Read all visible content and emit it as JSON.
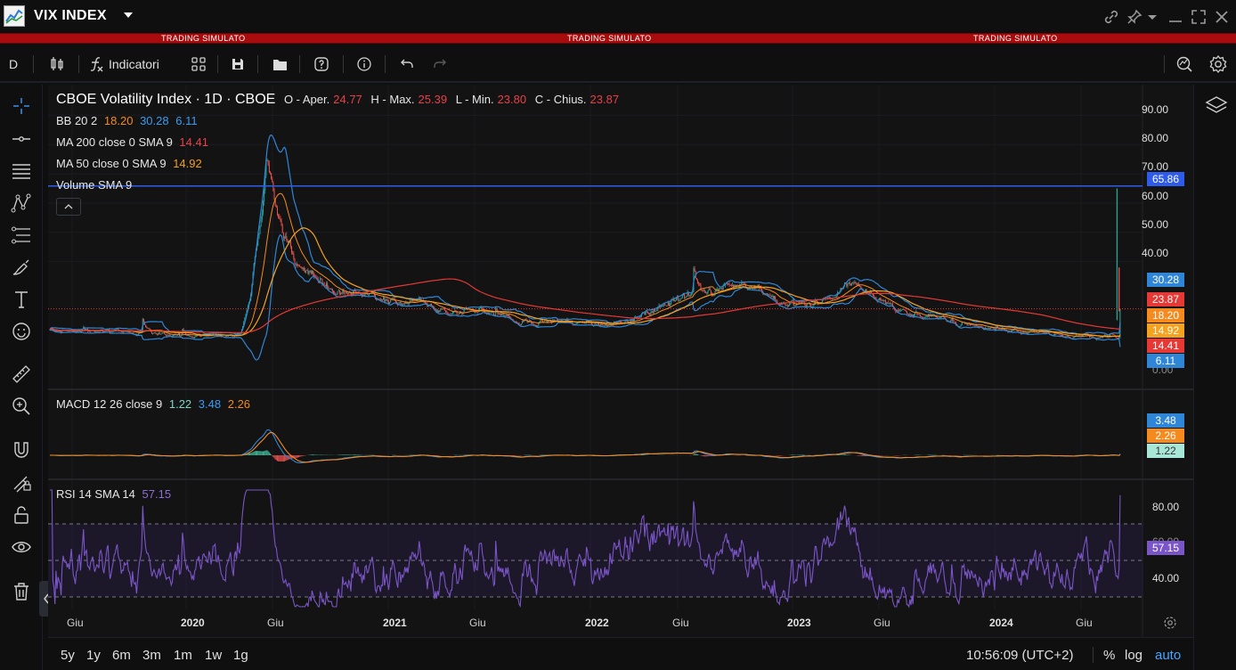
{
  "window": {
    "title": "VIX INDEX"
  },
  "banner": {
    "text_1": "TRADING SIMULATO",
    "text_2": "TRADING SIMULATO",
    "text_3": "TRADING SIMULATO"
  },
  "toolbar": {
    "interval": "D",
    "indicators_label": "Indicatori"
  },
  "legend": {
    "title": "CBOE Volatility Index · 1D · CBOE",
    "ohlc": {
      "o_label": "O - Aper.",
      "o_value": "24.77",
      "h_label": "H - Max.",
      "h_value": "25.39",
      "l_label": "L - Min.",
      "l_value": "23.80",
      "c_label": "C - Chius.",
      "c_value": "23.87"
    },
    "bb": {
      "label": "BB 20 2",
      "v1": "18.20",
      "v2": "30.28",
      "v3": "6.11"
    },
    "ma200": {
      "label": "MA 200 close 0 SMA 9",
      "value": "14.41"
    },
    "ma50": {
      "label": "MA 50 close 0 SMA 9",
      "value": "14.92"
    },
    "volume": {
      "label": "Volume SMA 9"
    },
    "macd": {
      "label": "MACD 12 26 close 9",
      "v1": "1.22",
      "v2": "3.48",
      "v3": "2.26"
    },
    "rsi": {
      "label": "RSI 14 SMA 14",
      "value": "57.15"
    }
  },
  "price_axis": {
    "labels": [
      "90.00",
      "80.00",
      "70.00",
      "60.00",
      "50.00",
      "40.00"
    ],
    "partial_bottom": "0.00",
    "tags": {
      "hline": "65.86",
      "bb_upper": "30.28",
      "last": "23.87",
      "bb_mid": "18.20",
      "ma50": "14.92",
      "ma200": "14.41",
      "bb_lower": "6.11"
    }
  },
  "macd_axis": {
    "tags": {
      "macd": "3.48",
      "signal": "2.26",
      "hist": "1.22"
    }
  },
  "rsi_axis": {
    "labels": [
      "80.00",
      "40.00"
    ],
    "partial": "60.00",
    "tag": "57.15"
  },
  "time_axis": {
    "labels": [
      "Giu",
      "2020",
      "Giu",
      "2021",
      "Giu",
      "2022",
      "Giu",
      "2023",
      "Giu",
      "2024",
      "Giu"
    ]
  },
  "bottom": {
    "ranges": [
      "5y",
      "1y",
      "6m",
      "3m",
      "1m",
      "1w",
      "1g"
    ],
    "clock": "10:56:09 (UTC+2)",
    "pct": "%",
    "log": "log",
    "auto": "auto"
  },
  "colors": {
    "candle_up": "#26a69a",
    "candle_down": "#ef5350",
    "bb": "#2f86d6",
    "ma_red": "#e53935",
    "ma_orange": "#f5a21e",
    "hline": "#2f5bea",
    "rsi": "#7a55c8",
    "banner": "#a80c0c"
  },
  "chart_data": {
    "type": "line",
    "price_range": [
      0,
      95
    ],
    "horizontal_line": 65.86,
    "last_close": 23.87,
    "rsi_bands": [
      30,
      50,
      70
    ],
    "series": [
      {
        "name": "BB 20 2",
        "values": [
          30.28,
          18.2,
          6.11
        ]
      },
      {
        "name": "MA 200 close 0 SMA 9",
        "values": [
          14.41
        ]
      },
      {
        "name": "MA 50 close 0 SMA 9",
        "values": [
          14.92
        ]
      },
      {
        "name": "MACD 12 26 close 9",
        "values": [
          1.22,
          3.48,
          2.26
        ]
      },
      {
        "name": "RSI 14 SMA 14",
        "values": [
          57.15
        ]
      }
    ]
  }
}
